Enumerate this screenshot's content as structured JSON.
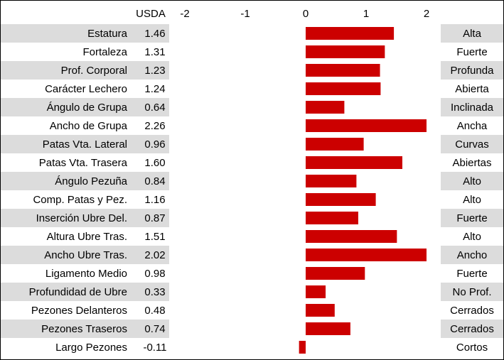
{
  "chart_data": {
    "type": "bar",
    "orientation": "horizontal",
    "value_header": "USDA",
    "categories": [
      "Estatura",
      "Fortaleza",
      "Prof. Corporal",
      "Carácter Lechero",
      "Ángulo de Grupa",
      "Ancho de Grupa",
      "Patas Vta. Lateral",
      "Patas Vta. Trasera",
      "Ángulo Pezuña",
      "Comp. Patas y Pez.",
      "Inserción Ubre Del.",
      "Altura Ubre Tras.",
      "Ancho Ubre Tras.",
      "Ligamento Medio",
      "Profundidad de Ubre",
      "Pezones Delanteros",
      "Pezones Traseros",
      "Largo Pezones"
    ],
    "values": [
      1.46,
      1.31,
      1.23,
      1.24,
      0.64,
      2.26,
      0.96,
      1.6,
      0.84,
      1.16,
      0.87,
      1.51,
      2.02,
      0.98,
      0.33,
      0.48,
      0.74,
      -0.11
    ],
    "value_labels": [
      "1.46",
      "1.31",
      "1.23",
      "1.24",
      "0.64",
      "2.26",
      "0.96",
      "1.60",
      "0.84",
      "1.16",
      "0.87",
      "1.51",
      "2.02",
      "0.98",
      "0.33",
      "0.48",
      "0.74",
      "-0.11"
    ],
    "trait_descriptions": [
      "Alta",
      "Fuerte",
      "Profunda",
      "Abierta",
      "Inclinada",
      "Ancha",
      "Curvas",
      "Abiertas",
      "Alto",
      "Alto",
      "Fuerte",
      "Alto",
      "Ancho",
      "Fuerte",
      "No Prof.",
      "Cerrados",
      "Cerrados",
      "Cortos"
    ],
    "color": "#cc0000",
    "xlim": [
      -2,
      2
    ],
    "xticks": [
      -2,
      -1,
      0,
      1,
      2
    ]
  }
}
